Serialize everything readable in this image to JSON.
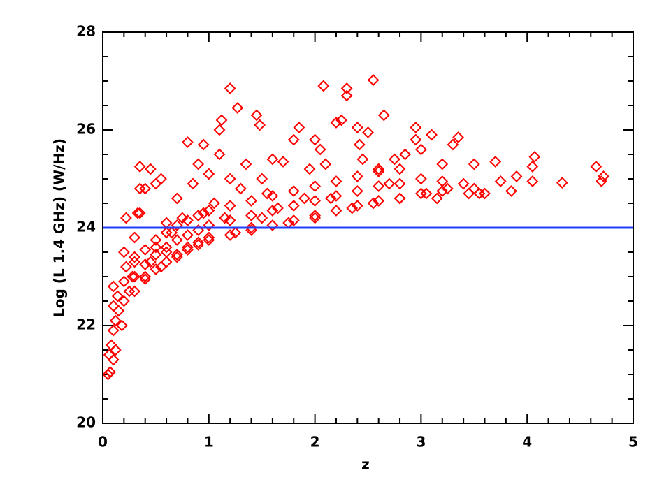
{
  "chart_data": {
    "type": "scatter",
    "xlabel": "z",
    "ylabel": "Log (L 1.4 GHz) (W/Hz)",
    "color": "#ff0000",
    "marker": "diamond",
    "xlim": [
      0,
      5
    ],
    "ylim": [
      20,
      28
    ],
    "xticks": [
      0,
      1,
      2,
      3,
      4,
      5
    ],
    "yticks": [
      20,
      22,
      24,
      26,
      28
    ],
    "xminorticks": [
      0.2,
      0.4,
      0.6,
      0.8,
      1.2,
      1.4,
      1.6,
      1.8,
      2.2,
      2.4,
      2.6,
      2.8,
      3.2,
      3.4,
      3.6,
      3.8,
      4.2,
      4.4,
      4.6,
      4.8
    ],
    "yminorticks": [
      20.5,
      21,
      21.5,
      22.5,
      23,
      23.5,
      24.5,
      25,
      25.5,
      26.5,
      27,
      27.5
    ],
    "hline": {
      "value": 24,
      "color": "#1f3fff"
    },
    "x": [
      0.05,
      0.07,
      0.06,
      0.08,
      0.1,
      0.1,
      0.12,
      0.12,
      0.15,
      0.14,
      0.1,
      0.1,
      0.18,
      0.2,
      0.2,
      0.22,
      0.2,
      0.22,
      0.25,
      0.28,
      0.3,
      0.3,
      0.33,
      0.35,
      0.35,
      0.35,
      0.4,
      0.4,
      0.45,
      0.45,
      0.5,
      0.5,
      0.55,
      0.55,
      0.6,
      0.6,
      0.65,
      0.7,
      0.7,
      0.75,
      0.8,
      0.8,
      0.85,
      0.9,
      0.9,
      0.95,
      0.95,
      1.0,
      1.0,
      1.05,
      1.1,
      1.1,
      1.12,
      1.15,
      1.2,
      1.2,
      1.25,
      1.27,
      1.3,
      1.35,
      1.4,
      1.45,
      1.48,
      1.5,
      1.5,
      1.55,
      1.6,
      1.65,
      1.7,
      1.75,
      1.8,
      1.85,
      1.9,
      1.95,
      2.0,
      2.0,
      2.05,
      2.08,
      2.1,
      2.15,
      2.2,
      2.25,
      2.3,
      2.3,
      2.35,
      2.4,
      2.42,
      2.45,
      2.5,
      2.55,
      2.55,
      2.6,
      2.65,
      2.7,
      2.75,
      2.8,
      2.85,
      2.95,
      2.95,
      3.0,
      3.05,
      3.1,
      3.15,
      3.2,
      3.25,
      3.3,
      3.35,
      3.4,
      3.45,
      3.5,
      3.5,
      3.55,
      3.6,
      3.7,
      3.75,
      3.85,
      3.9,
      4.05,
      4.05,
      4.07,
      4.33,
      4.65,
      4.7,
      4.72,
      0.3,
      0.3,
      0.3,
      0.4,
      0.4,
      0.4,
      0.5,
      0.5,
      0.5,
      0.6,
      0.6,
      0.6,
      0.7,
      0.7,
      0.7,
      0.8,
      0.8,
      0.8,
      0.9,
      0.9,
      0.9,
      1.0,
      1.0,
      1.0,
      1.2,
      1.2,
      1.2,
      1.4,
      1.4,
      1.4,
      1.6,
      1.6,
      1.6,
      1.8,
      1.8,
      1.8,
      2.0,
      2.0,
      2.0,
      2.2,
      2.2,
      2.2,
      2.4,
      2.4,
      2.4,
      2.6,
      2.6,
      2.6,
      2.8,
      2.8,
      2.8,
      3.0,
      3.0,
      3.2,
      3.2
    ],
    "values": [
      21.0,
      21.05,
      21.4,
      21.6,
      21.3,
      21.9,
      22.1,
      21.5,
      22.3,
      22.6,
      22.4,
      22.8,
      22.0,
      22.5,
      22.9,
      23.2,
      23.5,
      24.2,
      22.7,
      23.0,
      23.4,
      23.8,
      24.3,
      24.3,
      24.8,
      25.25,
      24.8,
      23.0,
      25.2,
      23.3,
      24.9,
      23.6,
      25.0,
      23.2,
      24.1,
      23.5,
      23.9,
      24.6,
      23.4,
      24.2,
      25.75,
      23.6,
      24.9,
      25.3,
      23.7,
      25.7,
      24.3,
      25.1,
      23.8,
      24.5,
      26.0,
      25.5,
      26.2,
      24.2,
      26.85,
      25.0,
      23.9,
      26.45,
      24.8,
      25.3,
      24.0,
      26.3,
      26.1,
      25.0,
      24.2,
      24.7,
      25.4,
      24.4,
      25.35,
      24.1,
      25.8,
      26.05,
      24.6,
      25.2,
      25.8,
      24.2,
      25.6,
      26.9,
      25.3,
      24.6,
      26.15,
      26.2,
      26.85,
      26.7,
      24.4,
      26.05,
      25.7,
      25.4,
      25.95,
      27.02,
      24.5,
      25.2,
      26.3,
      24.9,
      25.4,
      24.6,
      25.5,
      26.05,
      25.8,
      25.6,
      24.7,
      25.9,
      24.6,
      25.3,
      24.8,
      25.7,
      25.85,
      24.9,
      24.7,
      25.3,
      24.8,
      24.7,
      24.7,
      25.35,
      24.95,
      24.75,
      25.05,
      24.95,
      25.25,
      25.45,
      24.92,
      25.25,
      24.95,
      25.05,
      22.7,
      23.0,
      23.3,
      22.95,
      23.25,
      23.55,
      23.15,
      23.45,
      23.75,
      23.3,
      23.6,
      23.9,
      23.45,
      23.75,
      24.05,
      23.55,
      23.85,
      24.15,
      23.65,
      23.95,
      24.25,
      23.75,
      24.05,
      24.35,
      23.85,
      24.15,
      24.45,
      23.95,
      24.25,
      24.55,
      24.05,
      24.35,
      24.65,
      24.15,
      24.45,
      24.75,
      24.25,
      24.55,
      24.85,
      24.35,
      24.65,
      24.95,
      24.45,
      24.75,
      25.05,
      24.55,
      24.85,
      25.15,
      24.6,
      24.9,
      25.2,
      24.7,
      25.0,
      24.75,
      24.95
    ]
  }
}
